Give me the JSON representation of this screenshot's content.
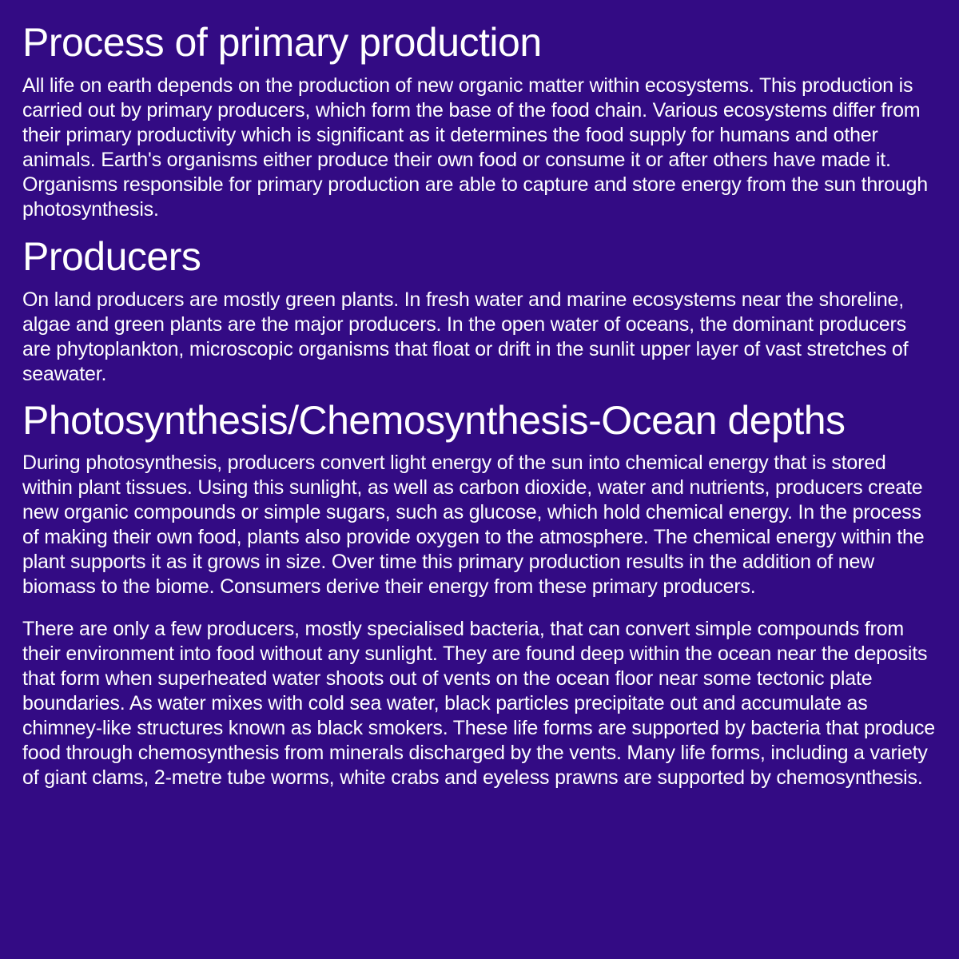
{
  "background_color": "#330b84",
  "text_color": "#ffffff",
  "heading_fontsize": 50,
  "body_fontsize": 25,
  "sections": {
    "s0": {
      "heading": "Process of primary production",
      "body": "All life on earth depends on the production of new organic matter within ecosystems. This production is carried out by primary producers, which form the base of the food chain. Various ecosystems differ from their primary productivity which is significant as it determines the food supply for humans and other animals. Earth's organisms either produce their own food or consume it or after others have made it. Organisms responsible for primary production are able to capture and store energy from the sun through photosynthesis."
    },
    "s1": {
      "heading": "Producers",
      "body": "On land producers are mostly green plants. In fresh water and marine ecosystems near the shoreline, algae and green plants are the major producers. In the open water of oceans, the dominant producers are phytoplankton, microscopic organisms that float or drift in the sunlit upper layer of vast stretches of seawater."
    },
    "s2": {
      "heading": "Photosynthesis/Chemosynthesis-Ocean depths",
      "body1": "During photosynthesis, producers convert light energy of the sun into chemical energy that is stored within plant tissues. Using this sunlight, as well as carbon dioxide, water and nutrients, producers create new organic compounds or simple sugars, such as glucose, which hold chemical energy. In the process of making their own food, plants also provide oxygen to the atmosphere. The chemical energy within the plant supports it as it grows in size. Over time this primary production results in the addition of new biomass to the biome. Consumers derive their energy from these primary producers.",
      "body2": "There are only a few producers, mostly specialised bacteria, that can convert simple compounds from their environment into food without any sunlight. They are found deep within the ocean near the deposits that form when superheated water shoots out of vents on the ocean floor near some tectonic plate boundaries. As water mixes with cold sea water, black particles precipitate out and accumulate as chimney-like structures known as black smokers. These life forms are supported by bacteria that produce food through chemosynthesis from minerals discharged by the vents. Many life forms, including a variety of giant clams, 2-metre tube worms, white crabs and eyeless prawns are supported by chemosynthesis."
    }
  }
}
